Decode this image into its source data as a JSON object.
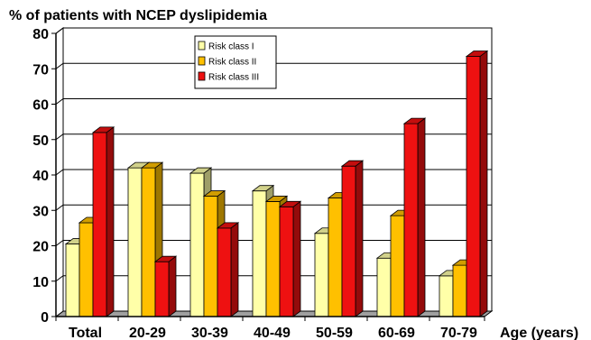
{
  "chart_data": {
    "type": "bar",
    "title": "% of patients with NCEP dyslipidemia",
    "xlabel": "Age (years)",
    "ylabel": "",
    "ylim": [
      0,
      80
    ],
    "yticks": [
      "0",
      "10",
      "20",
      "30",
      "40",
      "50",
      "60",
      "70",
      "80"
    ],
    "grid": true,
    "legend_position": "top-center",
    "categories": [
      "Total",
      "20-29",
      "30-39",
      "40-49",
      "50-59",
      "60-69",
      "70-79"
    ],
    "series": [
      {
        "name": "Risk class I",
        "color": "#ffffa8",
        "values": [
          20.5,
          42,
          40.5,
          35.5,
          23.5,
          16.5,
          11.5
        ]
      },
      {
        "name": "Risk class II",
        "color": "#ffc000",
        "values": [
          26.5,
          42,
          34,
          32.5,
          33.5,
          28.5,
          14.5
        ]
      },
      {
        "name": "Risk class III",
        "color": "#ee1111",
        "values": [
          52,
          15.5,
          25,
          31,
          42.5,
          54.5,
          73.5
        ]
      }
    ]
  }
}
